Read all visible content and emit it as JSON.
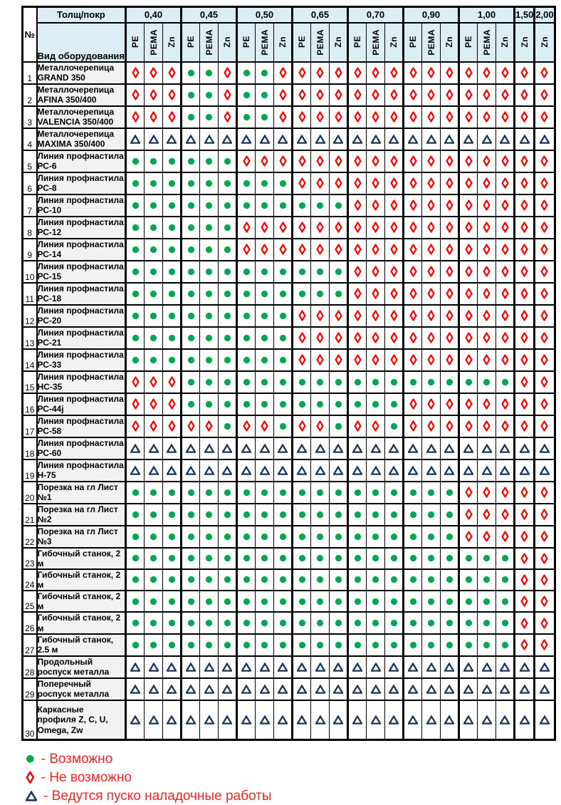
{
  "colors": {
    "possible": "#00A650",
    "impossible": "#FF0000",
    "pending": "#17375E",
    "header_bg": "#DAEEF3",
    "name_bg": "#F2F2F2",
    "legend_text": "#FF2020",
    "border": "#000000"
  },
  "header": {
    "corner_number": "№",
    "thickness_label": "Толщ/покр",
    "equipment_label": "Вид оборудования",
    "groups": [
      {
        "thickness": "0,40",
        "coatings": [
          "PE",
          "PEMA",
          "Zn"
        ]
      },
      {
        "thickness": "0,45",
        "coatings": [
          "PE",
          "PEMA",
          "Zn"
        ]
      },
      {
        "thickness": "0,50",
        "coatings": [
          "PE",
          "PEMA",
          "Zn"
        ]
      },
      {
        "thickness": "0,65",
        "coatings": [
          "PE",
          "PEMA",
          "Zn"
        ]
      },
      {
        "thickness": "0,70",
        "coatings": [
          "PE",
          "PEMA",
          "Zn"
        ]
      },
      {
        "thickness": "0,90",
        "coatings": [
          "PE",
          "PEMA",
          "Zn"
        ]
      },
      {
        "thickness": "1,00",
        "coatings": [
          "PE",
          "PEMA",
          "Zn"
        ]
      },
      {
        "thickness": "1,50",
        "coatings": [
          "Zn"
        ]
      },
      {
        "thickness": "2,00",
        "coatings": [
          "Zn"
        ]
      }
    ]
  },
  "symbol_meanings": {
    "g": "possible",
    "r": "impossible",
    "t": "pending"
  },
  "rows": [
    {
      "num": "1",
      "name": "Металлочерепица GRAND 350",
      "cells": "rrrggrggrrrrrrrrrrrrrrr"
    },
    {
      "num": "2",
      "name": "Металлочерепица AFINA 350/400",
      "cells": "rrrggrggrrrrrrrrrrrrrrr"
    },
    {
      "num": "3",
      "name": "Металлочерепица VALENCIA 350/400",
      "cells": "rrrggrggrrrrrrrrrrrrrrr"
    },
    {
      "num": "4",
      "name": "Металлочерепица MAXIMA 350/400",
      "cells": "ttttttttttttttttttttttt"
    },
    {
      "num": "5",
      "name": "Линия профнастила РС-6",
      "cells": "ggggggrrrrrrrrrrrrrrrrr"
    },
    {
      "num": "6",
      "name": "Линия профнастила РС-8",
      "cells": "gggggggggrrrrrrrrrrrrrr"
    },
    {
      "num": "7",
      "name": "Линия профнастила РС-10",
      "cells": "ggggggggggggrrrrrrrrrrr"
    },
    {
      "num": "8",
      "name": "Линия профнастила РС-12",
      "cells": "ggggggrrrrrrrrrrrrrrrrr"
    },
    {
      "num": "9",
      "name": "Линия профнастила РС-14",
      "cells": "ggggggrrrrrrrrrrrrrrrrr"
    },
    {
      "num": "10",
      "name": "Линия профнастила РС-15",
      "cells": "ggggggggggggrrrrrrrrrrr"
    },
    {
      "num": "11",
      "name": "Линия профнастила РС-18",
      "cells": "ggggggggggggrrrrrrrrrrr"
    },
    {
      "num": "12",
      "name": "Линия профнастила РС-20",
      "cells": "gggggggggrrrrrrrrrrrrrr"
    },
    {
      "num": "13",
      "name": "Линия профнастила РС-21",
      "cells": "gggggggggrrrrrrrrrrrrrr"
    },
    {
      "num": "14",
      "name": "Линия профнастила РС-33",
      "cells": "gggggggggrrrrrrrrrrrrrr"
    },
    {
      "num": "15",
      "name": "Линия профнастила НС-35",
      "cells": "rrrggggggggggggggggggrr"
    },
    {
      "num": "16",
      "name": "Линия профнастила РС-44j",
      "cells": "rrrggggggggggggrrrrrrrr"
    },
    {
      "num": "17",
      "name": "Линия профнастила РС-58",
      "cells": "rrrrrgrrgrrgrrgrrrrrrrr"
    },
    {
      "num": "18",
      "name": "Линия профнастила РС-60",
      "cells": "ttttttttttttttttttttttt"
    },
    {
      "num": "19",
      "name": "Линия профнастила Н-75",
      "cells": "ttttttttttttttttttttttt"
    },
    {
      "num": "20",
      "name": "Порезка на гл Лист №1",
      "cells": "ggggggggggggggggggrrrrr"
    },
    {
      "num": "21",
      "name": "Порезка на гл Лист №2",
      "cells": "ggggggggggggggggggrrrrr"
    },
    {
      "num": "22",
      "name": "Порезка на гл Лист №3",
      "cells": "ggggggggggggggggggrrrrr"
    },
    {
      "num": "23",
      "name": "Гибочный станок, 2 м",
      "cells": "gggggggggggggggggggggrr"
    },
    {
      "num": "24",
      "name": "Гибочный станок, 2 м",
      "cells": "gggggggggggggggggggggrr"
    },
    {
      "num": "25",
      "name": "Гибочный станок, 2 м",
      "cells": "gggggggggggggggggggggrr"
    },
    {
      "num": "26",
      "name": "Гибочный станок, 2 м",
      "cells": "gggggggggggggggggggggrr"
    },
    {
      "num": "27",
      "name": "Гибочный станок, 2.5 м",
      "cells": "gggggggggggggggggggggrr"
    },
    {
      "num": "28",
      "name": "Продольный роспуск металла",
      "cells": "ttttttttttttttttttttttt"
    },
    {
      "num": "29",
      "name": "Поперечный роспуск металла",
      "cells": "ttttttttttttttttttttttt"
    },
    {
      "num": "30",
      "name": "Каркасные профиля Z, C, U, Omega, Zw",
      "cells": "ttttttttttttttttttttttt"
    }
  ],
  "legend": [
    {
      "symbol": "g",
      "label": "- Возможно"
    },
    {
      "symbol": "r",
      "label": "- Не возможно"
    },
    {
      "symbol": "t",
      "label": "- Ведутся пуско наладочные работы"
    }
  ]
}
